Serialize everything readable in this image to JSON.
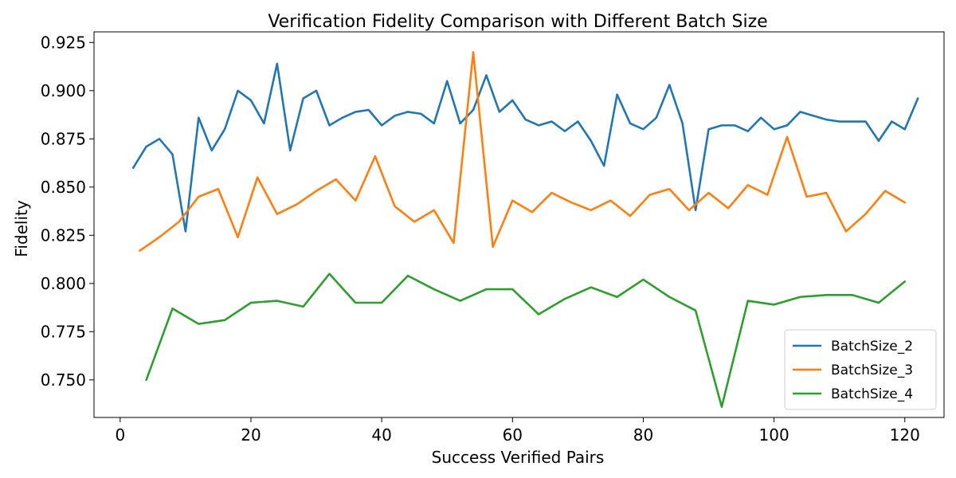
{
  "chart_data": {
    "type": "line",
    "title": "Verification Fidelity Comparison with Different Batch Size",
    "xlabel": "Success Verified Pairs",
    "ylabel": "Fidelity",
    "xlim": [
      -4,
      126
    ],
    "ylim": [
      0.7305,
      0.9305
    ],
    "xticks": [
      0,
      20,
      40,
      60,
      80,
      100,
      120
    ],
    "xtick_labels": [
      "0",
      "20",
      "40",
      "60",
      "80",
      "100",
      "120"
    ],
    "yticks": [
      0.75,
      0.775,
      0.8,
      0.825,
      0.85,
      0.875,
      0.9,
      0.925
    ],
    "ytick_labels": [
      "0.750",
      "0.775",
      "0.800",
      "0.825",
      "0.850",
      "0.875",
      "0.900",
      "0.925"
    ],
    "grid": false,
    "legend_position": "bottom-right",
    "series": [
      {
        "name": "BatchSize_2",
        "color": "#1f77b4",
        "x": [
          2,
          4,
          6,
          8,
          10,
          12,
          14,
          16,
          18,
          20,
          22,
          24,
          26,
          28,
          30,
          32,
          34,
          36,
          38,
          40,
          42,
          44,
          46,
          48,
          50,
          52,
          54,
          56,
          58,
          60,
          62,
          64,
          66,
          68,
          70,
          72,
          74,
          76,
          78,
          80,
          82,
          84,
          86,
          88,
          90,
          92,
          94,
          96,
          98,
          100,
          102,
          104,
          106,
          108,
          110,
          112,
          114,
          116,
          118,
          120,
          122
        ],
        "y": [
          0.86,
          0.871,
          0.875,
          0.867,
          0.827,
          0.886,
          0.869,
          0.88,
          0.9,
          0.895,
          0.883,
          0.914,
          0.869,
          0.896,
          0.9,
          0.882,
          0.886,
          0.889,
          0.89,
          0.882,
          0.887,
          0.889,
          0.888,
          0.883,
          0.905,
          0.883,
          0.89,
          0.908,
          0.889,
          0.895,
          0.885,
          0.882,
          0.884,
          0.879,
          0.884,
          0.874,
          0.861,
          0.898,
          0.883,
          0.88,
          0.886,
          0.903,
          0.883,
          0.838,
          0.88,
          0.882,
          0.882,
          0.879,
          0.886,
          0.88,
          0.882,
          0.889,
          0.887,
          0.885,
          0.884,
          0.884,
          0.884,
          0.874,
          0.884,
          0.88,
          0.896
        ]
      },
      {
        "name": "BatchSize_3",
        "color": "#ff7f0e",
        "x": [
          3,
          6,
          9,
          12,
          15,
          18,
          21,
          24,
          27,
          30,
          33,
          36,
          39,
          42,
          45,
          48,
          51,
          54,
          57,
          60,
          63,
          66,
          69,
          72,
          75,
          78,
          81,
          84,
          87,
          90,
          93,
          96,
          99,
          102,
          105,
          108,
          111,
          114,
          117,
          120
        ],
        "y": [
          0.817,
          0.824,
          0.832,
          0.845,
          0.849,
          0.824,
          0.855,
          0.836,
          0.841,
          0.848,
          0.854,
          0.843,
          0.866,
          0.84,
          0.832,
          0.838,
          0.821,
          0.92,
          0.819,
          0.843,
          0.837,
          0.847,
          0.842,
          0.838,
          0.843,
          0.835,
          0.846,
          0.849,
          0.838,
          0.847,
          0.839,
          0.851,
          0.846,
          0.876,
          0.845,
          0.847,
          0.827,
          0.836,
          0.848,
          0.842
        ]
      },
      {
        "name": "BatchSize_4",
        "color": "#2ca02c",
        "x": [
          4,
          8,
          12,
          16,
          20,
          24,
          28,
          32,
          36,
          40,
          44,
          48,
          52,
          56,
          60,
          64,
          68,
          72,
          76,
          80,
          84,
          88,
          92,
          96,
          100,
          104,
          108,
          112,
          116,
          120
        ],
        "y": [
          0.75,
          0.787,
          0.779,
          0.781,
          0.79,
          0.791,
          0.788,
          0.805,
          0.79,
          0.79,
          0.804,
          0.797,
          0.791,
          0.797,
          0.797,
          0.784,
          0.792,
          0.798,
          0.793,
          0.802,
          0.793,
          0.786,
          0.736,
          0.791,
          0.789,
          0.793,
          0.794,
          0.794,
          0.79,
          0.801
        ]
      }
    ]
  }
}
